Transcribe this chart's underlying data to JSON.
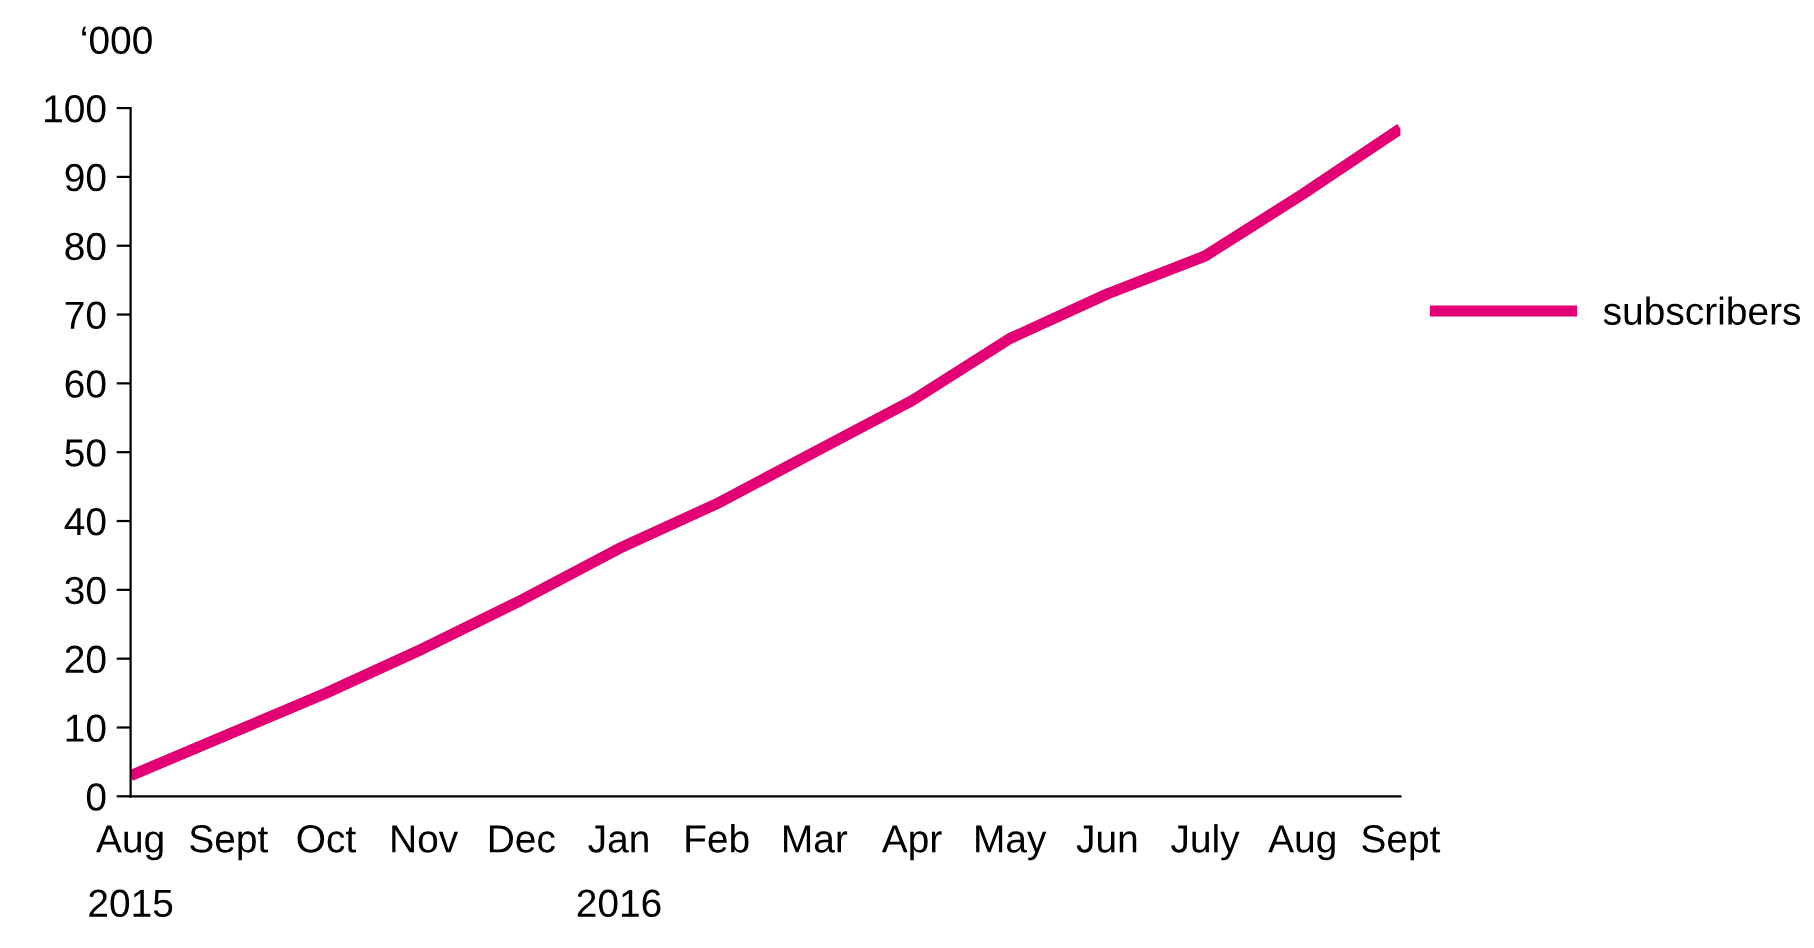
{
  "chart_data": {
    "type": "line",
    "ylabel": "‘000",
    "categories": [
      "Aug\n2015",
      "Sept",
      "Oct",
      "Nov",
      "Dec",
      "Jan\n2016",
      "Feb",
      "Mar",
      "Apr",
      "May",
      "Jun",
      "July",
      "Aug",
      "Sept"
    ],
    "series": [
      {
        "name": "subscribers",
        "color": "#e20074",
        "values": [
          3,
          9,
          15,
          21.5,
          28.5,
          36,
          42.5,
          50,
          57.5,
          66.5,
          73,
          78.5,
          87.5,
          97
        ]
      }
    ],
    "ylim": [
      0,
      100
    ],
    "yticks": [
      0,
      10,
      20,
      30,
      40,
      50,
      60,
      70,
      80,
      90,
      100
    ],
    "legend": "right",
    "grid": false,
    "marker": "none",
    "line_style": "solid"
  }
}
